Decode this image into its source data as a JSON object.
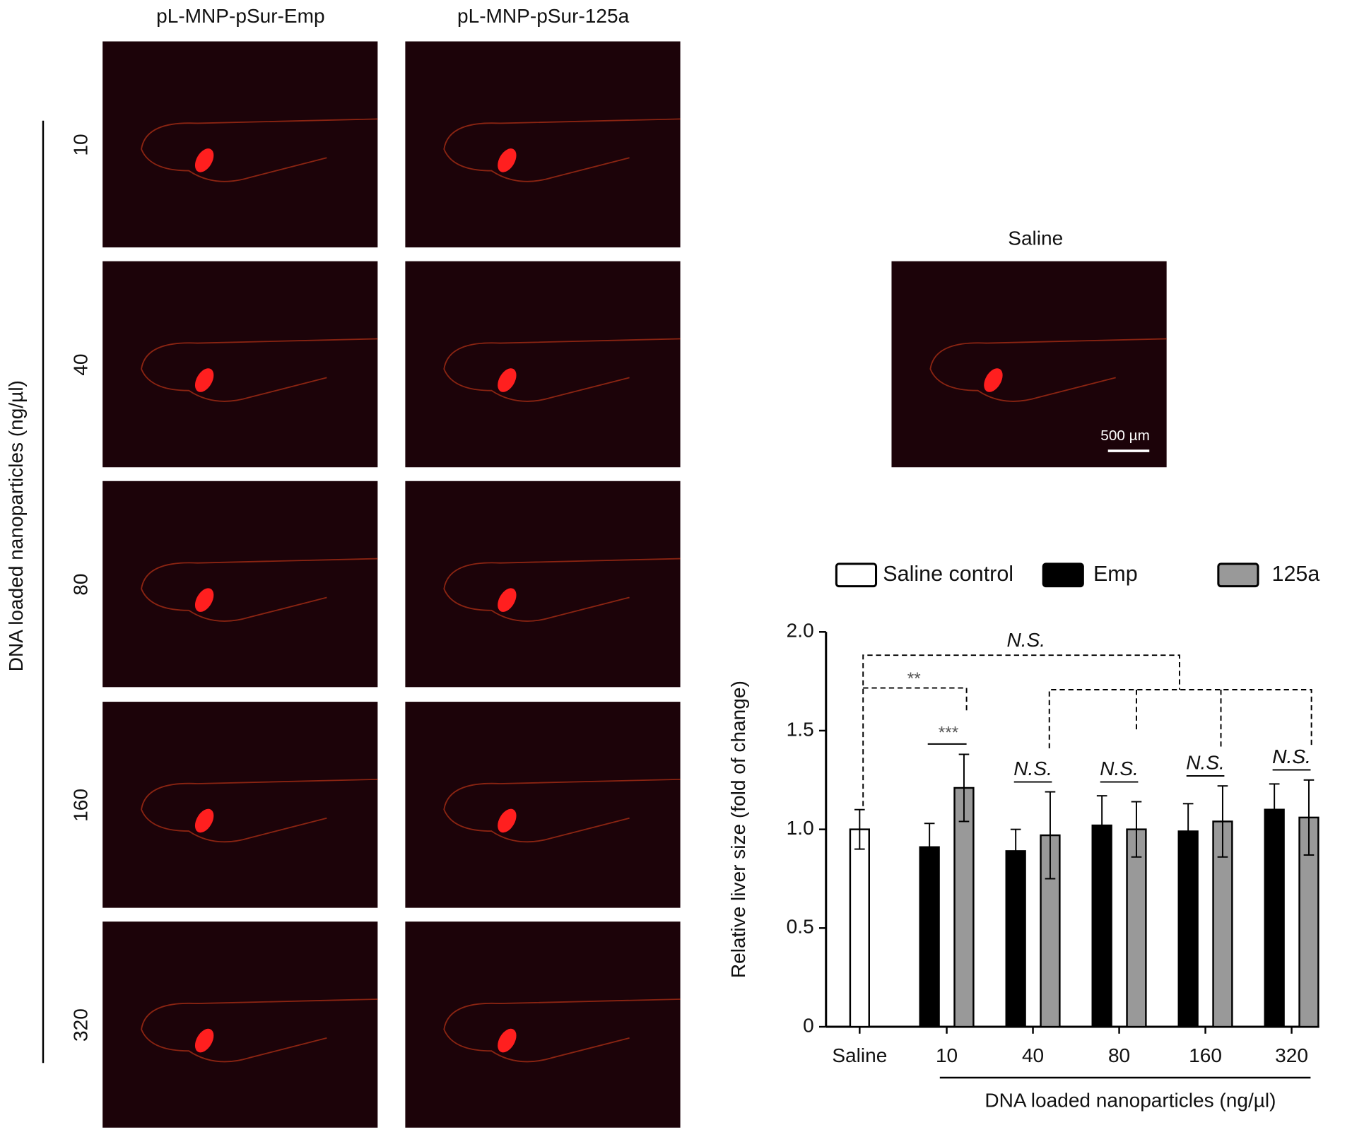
{
  "images": {
    "columns": [
      "pL-MNP-pSur-Emp",
      "pL-MNP-pSur-125a"
    ],
    "rows": [
      "10",
      "40",
      "80",
      "160",
      "320"
    ],
    "row_axis_label": "DNA loaded nanoparticles (ng/µl)",
    "saline_title": "Saline",
    "scale_bar": "500 µm"
  },
  "chart_data": {
    "type": "bar",
    "categories": [
      "Saline",
      "10",
      "40",
      "80",
      "160",
      "320"
    ],
    "series": [
      {
        "name": "Saline control",
        "color": "#ffffff",
        "values": [
          1.0,
          null,
          null,
          null,
          null,
          null
        ],
        "errors": [
          0.1,
          null,
          null,
          null,
          null,
          null
        ]
      },
      {
        "name": "Emp",
        "color": "#000000",
        "values": [
          null,
          0.91,
          0.89,
          1.02,
          0.99,
          1.1
        ],
        "errors": [
          null,
          0.12,
          0.11,
          0.15,
          0.14,
          0.13
        ]
      },
      {
        "name": "125a",
        "color": "#999999",
        "values": [
          null,
          1.21,
          0.97,
          1.0,
          1.04,
          1.06
        ],
        "errors": [
          null,
          0.17,
          0.22,
          0.14,
          0.18,
          0.19
        ]
      }
    ],
    "ylabel": "Relative liver size (fold of change)",
    "xlabel": "DNA loaded nanoparticles (ng/µl)",
    "ylim": [
      0,
      2
    ],
    "yticks": [
      0,
      0.5,
      {
        "value": 1,
        "label": "1.0"
      },
      1.5,
      {
        "value": 2,
        "label": "2.0"
      }
    ],
    "annotations": [
      "N.S.",
      "**",
      "***",
      "N.S.",
      "N.S.",
      "N.S.",
      "N.S.",
      "N.S."
    ]
  }
}
